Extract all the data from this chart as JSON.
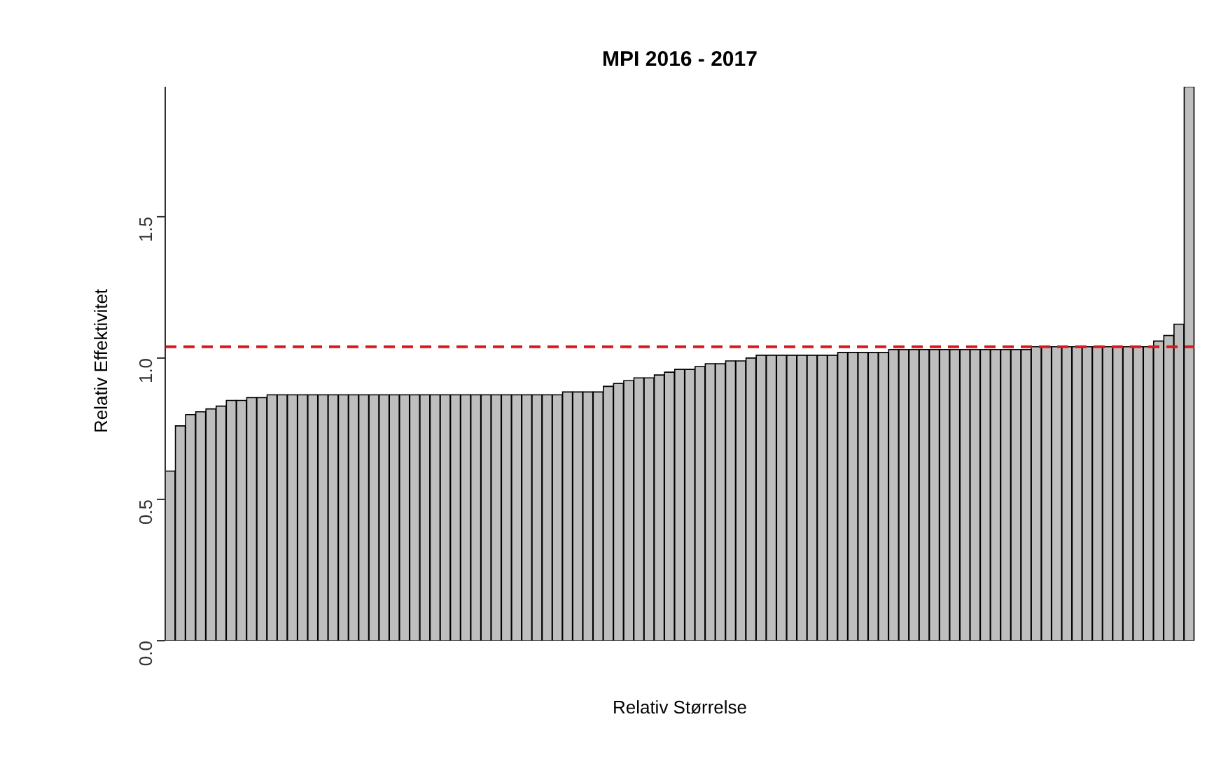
{
  "chart_data": {
    "type": "bar",
    "title": "MPI 2016 - 2017",
    "xlabel": "Relativ Størrelse",
    "ylabel": "Relativ Effektivitet",
    "categories": [
      null,
      null,
      null,
      null,
      null,
      null,
      null,
      null,
      null,
      null,
      null,
      null,
      null,
      null,
      null,
      null,
      null,
      null,
      null,
      null,
      null,
      null,
      null,
      null,
      null,
      null,
      null,
      null,
      null,
      null,
      null,
      null,
      null,
      null,
      null,
      null,
      null,
      null,
      null,
      null,
      null,
      null,
      null,
      null,
      null,
      null,
      null,
      null,
      null,
      null,
      null,
      null,
      null,
      null,
      null,
      null,
      null,
      null,
      null,
      null,
      null,
      null,
      null,
      null,
      null,
      null,
      null,
      null,
      null,
      null,
      null,
      null,
      null,
      null,
      null,
      null,
      null,
      null,
      null,
      null,
      null,
      null,
      null,
      null,
      null,
      null,
      null,
      null,
      null,
      null,
      null,
      null,
      null,
      null,
      null,
      null,
      null,
      null,
      null,
      null,
      null
    ],
    "values": [
      0.6,
      0.76,
      0.8,
      0.81,
      0.82,
      0.83,
      0.85,
      0.85,
      0.86,
      0.86,
      0.87,
      0.87,
      0.87,
      0.87,
      0.87,
      0.87,
      0.87,
      0.87,
      0.87,
      0.87,
      0.87,
      0.87,
      0.87,
      0.87,
      0.87,
      0.87,
      0.87,
      0.87,
      0.87,
      0.87,
      0.87,
      0.87,
      0.87,
      0.87,
      0.87,
      0.87,
      0.87,
      0.87,
      0.87,
      0.88,
      0.88,
      0.88,
      0.88,
      0.9,
      0.91,
      0.92,
      0.93,
      0.93,
      0.94,
      0.95,
      0.96,
      0.96,
      0.97,
      0.98,
      0.98,
      0.99,
      0.99,
      1.0,
      1.01,
      1.01,
      1.01,
      1.01,
      1.01,
      1.01,
      1.01,
      1.01,
      1.02,
      1.02,
      1.02,
      1.02,
      1.02,
      1.03,
      1.03,
      1.03,
      1.03,
      1.03,
      1.03,
      1.03,
      1.03,
      1.03,
      1.03,
      1.03,
      1.03,
      1.03,
      1.03,
      1.04,
      1.04,
      1.04,
      1.04,
      1.04,
      1.04,
      1.04,
      1.04,
      1.04,
      1.04,
      1.04,
      1.04,
      1.06,
      1.08,
      1.12,
      1.96
    ],
    "color": "#bebebe",
    "ylim": [
      0,
      1.96
    ],
    "yticks": [
      {
        "value": 0,
        "label": "0.0"
      },
      0.5,
      {
        "value": 1,
        "label": "1.0"
      },
      1.5
    ],
    "tick_labels": "y",
    "grid": false,
    "legend": false,
    "ref_lines": [
      {
        "axis": "y",
        "value": 1.04,
        "color": "#d7191c",
        "line_style": "dashed"
      }
    ]
  }
}
